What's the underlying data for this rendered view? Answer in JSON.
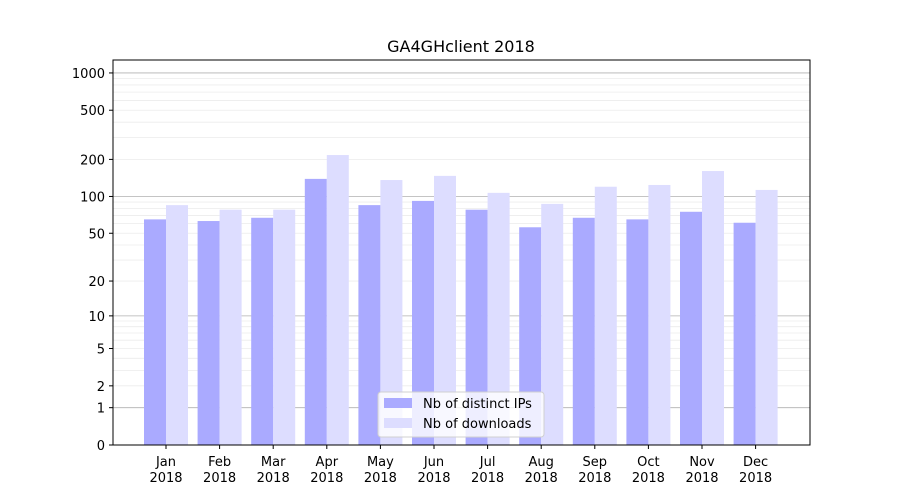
{
  "chart_data": {
    "type": "bar",
    "title": "GA4GHclient 2018",
    "xlabel": "",
    "ylabel": "",
    "yscale": "symlog (log10(v+1))",
    "ylim": [
      0,
      1200
    ],
    "yticks": [
      0,
      1,
      2,
      5,
      10,
      20,
      50,
      100,
      200,
      500,
      1000
    ],
    "grid": true,
    "legend_position": "bottom-center",
    "categories": [
      "Jan\n2018",
      "Feb\n2018",
      "Mar\n2018",
      "Apr\n2018",
      "May\n2018",
      "Jun\n2018",
      "Jul\n2018",
      "Aug\n2018",
      "Sep\n2018",
      "Oct\n2018",
      "Nov\n2018",
      "Dec\n2018"
    ],
    "series": [
      {
        "name": "Nb of distinct IPs",
        "color": "#aaaaff",
        "values": [
          65,
          63,
          67,
          139,
          85,
          92,
          78,
          56,
          67,
          65,
          75,
          61
        ]
      },
      {
        "name": "Nb of downloads",
        "color": "#ddddff",
        "values": [
          85,
          78,
          78,
          217,
          136,
          147,
          107,
          87,
          120,
          124,
          161,
          113
        ]
      }
    ]
  }
}
